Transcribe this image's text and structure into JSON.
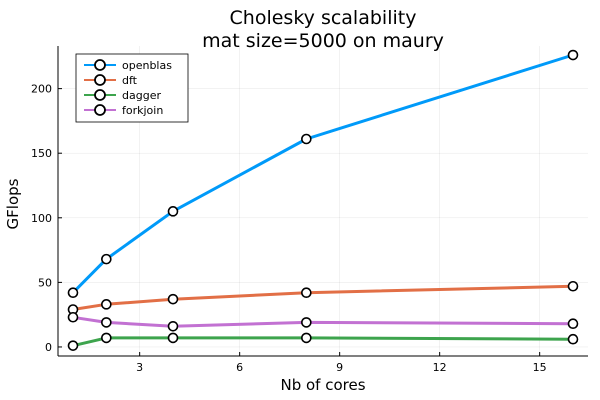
{
  "chart_data": {
    "type": "line",
    "title": "Cholesky scalability",
    "subtitle": "mat size=5000 on maury",
    "xlabel": "Nb of cores",
    "ylabel": "GFlops",
    "x": [
      1,
      2,
      4,
      8,
      16
    ],
    "xlim": [
      0.55,
      16.45
    ],
    "ylim": [
      -7,
      233
    ],
    "xticks": [
      3,
      6,
      9,
      12,
      15
    ],
    "yticks": [
      0,
      50,
      100,
      150,
      200
    ],
    "grid": true,
    "legend_position": "top-left",
    "series": [
      {
        "name": "openblas",
        "color": "#009AF9",
        "values": [
          42,
          68,
          105,
          161,
          226
        ]
      },
      {
        "name": "dft",
        "color": "#E26F46",
        "values": [
          29,
          33,
          37,
          42,
          47
        ]
      },
      {
        "name": "dagger",
        "color": "#3DA44D",
        "values": [
          1,
          7,
          7,
          7,
          6
        ]
      },
      {
        "name": "forkjoin",
        "color": "#C271D2",
        "values": [
          23,
          19,
          16,
          19,
          18
        ]
      }
    ]
  }
}
